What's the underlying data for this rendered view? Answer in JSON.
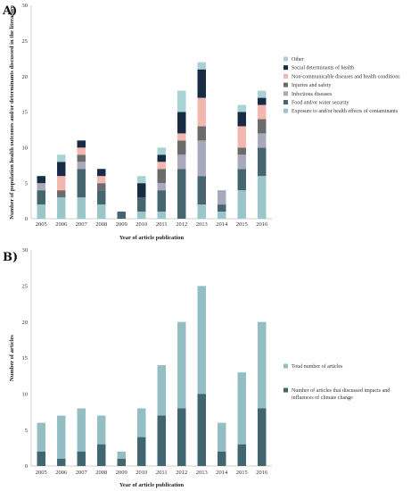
{
  "chart_data": [
    {
      "panel": "A)",
      "type": "bar",
      "stacked": true,
      "categories": [
        "2005",
        "2006",
        "2007",
        "2008",
        "2009",
        "2010",
        "2011",
        "2012",
        "2013",
        "2014",
        "2015",
        "2016"
      ],
      "xlabel": "Year of article publication",
      "ylabel": "Number of population health outcomes and/or determinants discussed in the literature",
      "ylim": [
        0,
        30
      ],
      "yticks": [
        "0",
        "5",
        "10",
        "15",
        "20",
        "25",
        "30"
      ],
      "grid": false,
      "legend_position": "right",
      "series": [
        {
          "name": "Exposure to and/or health effects of contaminants",
          "color": "#9bc6c9",
          "values": [
            2,
            3,
            3,
            2,
            0,
            1,
            1,
            0,
            2,
            1,
            4,
            6
          ]
        },
        {
          "name": "Food and/or water security",
          "color": "#46656e",
          "values": [
            2,
            0,
            4,
            2,
            1,
            2,
            3,
            7,
            4,
            1,
            3,
            4
          ]
        },
        {
          "name": "Infectious diseases",
          "color": "#a9a9bd",
          "values": [
            1,
            0,
            1,
            0,
            0,
            0,
            1,
            2,
            5,
            2,
            2,
            2
          ]
        },
        {
          "name": "Injuries and safety",
          "color": "#6b6b6b",
          "values": [
            0,
            1,
            1,
            1,
            0,
            0,
            2,
            2,
            2,
            0,
            1,
            2
          ]
        },
        {
          "name": "Non-communicable diseases and health conditions",
          "color": "#f2b8b0",
          "values": [
            0,
            2,
            1,
            1,
            0,
            0,
            1,
            1,
            4,
            0,
            3,
            2
          ]
        },
        {
          "name": "Social determinants of health",
          "color": "#172b45",
          "values": [
            1,
            2,
            1,
            1,
            0,
            2,
            1,
            3,
            4,
            0,
            2,
            1
          ]
        },
        {
          "name": "Other",
          "color": "#a9d2d4",
          "values": [
            0,
            1,
            0,
            0,
            0,
            1,
            1,
            3,
            1,
            0,
            1,
            1
          ]
        }
      ]
    },
    {
      "panel": "B)",
      "type": "bar",
      "stacked": false,
      "overlapped": true,
      "categories": [
        "2005",
        "2006",
        "2007",
        "2008",
        "2009",
        "2010",
        "2011",
        "2012",
        "2013",
        "2014",
        "2015",
        "2016"
      ],
      "xlabel": "Year of article publication",
      "ylabel": "Number of articles",
      "ylim": [
        0,
        30
      ],
      "yticks": [
        "0",
        "5",
        "10",
        "15",
        "20",
        "25",
        "30"
      ],
      "grid": false,
      "legend_position": "right",
      "series": [
        {
          "name": "Total number of articles",
          "color": "#93bfc4",
          "values": [
            6,
            7,
            8,
            7,
            2,
            8,
            14,
            20,
            25,
            6,
            13,
            20
          ]
        },
        {
          "name": "Number of articles that discussed impacts and influences of climate change",
          "color": "#426670",
          "values": [
            2,
            1,
            2,
            3,
            1,
            4,
            7,
            8,
            10,
            2,
            3,
            8
          ]
        }
      ]
    }
  ]
}
